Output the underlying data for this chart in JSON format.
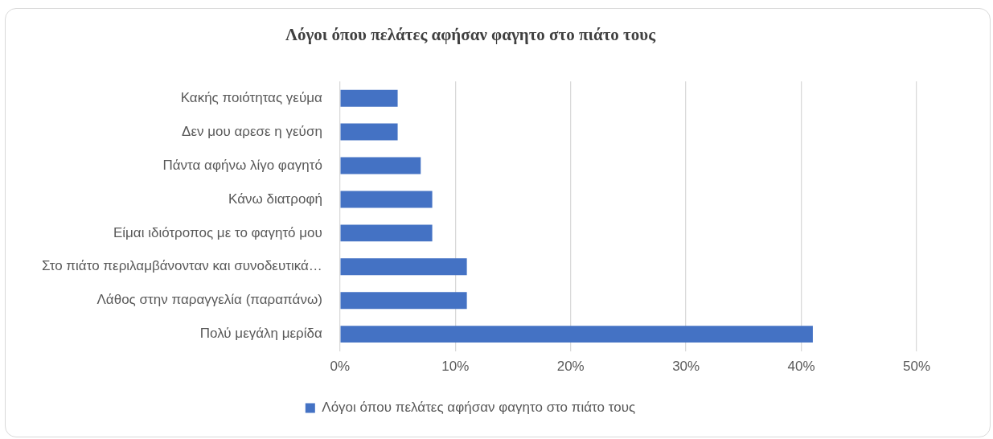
{
  "chart_data": {
    "type": "bar",
    "orientation": "horizontal",
    "title": "Λόγοι όπου πελάτες αφήσαν φαγητο στο πιάτο τους",
    "categories": [
      "Κακής ποιότητας γεύμα",
      "Δεν μου αρεσε η γεύση",
      "Πάντα αφήνω λίγο φαγητό",
      "Κάνω διατροφή",
      "Είμαι ιδιότροπος με το φαγητό μου",
      "Στο πιάτο περιλαμβάνονταν και συνοδευτικά…",
      "Λάθος στην παραγγελία (παραπάνω)",
      "Πολύ μεγάλη μερίδα"
    ],
    "series": [
      {
        "name": "Λόγοι όπου πελάτες αφήσαν φαγητο στο πιάτο τους",
        "color": "#4472c4",
        "values": [
          5,
          5,
          7,
          8,
          8,
          11,
          11,
          41
        ]
      }
    ],
    "xlim": [
      0,
      50
    ],
    "xticks": [
      {
        "value": 0,
        "label": "0%"
      },
      {
        "value": 10,
        "label": "10%"
      },
      {
        "value": 20,
        "label": "20%"
      },
      {
        "value": 30,
        "label": "30%"
      },
      {
        "value": 40,
        "label": "40%"
      },
      {
        "value": 50,
        "label": "50%"
      }
    ],
    "grid": "x",
    "legend": "bottom"
  }
}
